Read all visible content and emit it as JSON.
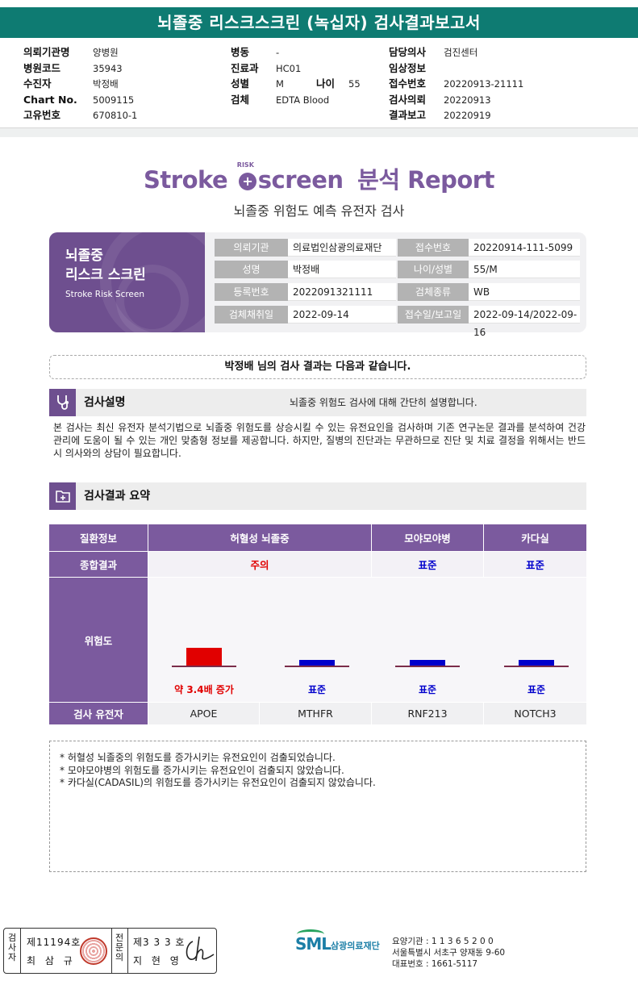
{
  "report_title": "뇌졸중 리스크스크린 (녹십자) 검사결과보고서",
  "header": {
    "col1": [
      {
        "label": "의뢰기관명",
        "value": "양병원"
      },
      {
        "label": "병원코드",
        "value": "35943"
      },
      {
        "label": "수진자",
        "value": "박정배"
      },
      {
        "label": "Chart No.",
        "value": "5009115"
      },
      {
        "label": "고유번호",
        "value": "670810-1"
      }
    ],
    "col2": [
      {
        "label": "병동",
        "value": "-"
      },
      {
        "label": "진료과",
        "value": "HC01"
      },
      {
        "label": "성별",
        "value": "M"
      },
      {
        "label": "검체",
        "value": "EDTA Blood"
      }
    ],
    "age_label": "나이",
    "age_value": "55",
    "col3": [
      {
        "label": "담당의사",
        "value": "검진센터"
      },
      {
        "label": "임상정보",
        "value": ""
      },
      {
        "label": "접수번호",
        "value": "20220913-21111"
      },
      {
        "label": "검사의뢰",
        "value": "20220913"
      },
      {
        "label": "결과보고",
        "value": "20220919"
      }
    ]
  },
  "brand": {
    "stroke": "Stroke",
    "risk_small": "RISK",
    "plus_icon": "+",
    "screen": "screen",
    "report": "분석 Report"
  },
  "subtitle": "뇌졸중 위험도 예측 유전자 검사",
  "info_card": {
    "side_title_line1": "뇌졸중",
    "side_title_line2": "리스크 스크린",
    "side_sub": "Stroke Risk Screen",
    "rows": [
      {
        "k1": "의뢰기관",
        "v1": "의료법인삼광의료재단",
        "k2": "접수번호",
        "v2": "20220914-111-5099"
      },
      {
        "k1": "성명",
        "v1": "박정배",
        "k2": "나이/성별",
        "v2": "55/M"
      },
      {
        "k1": "등록번호",
        "v1": "2022091321111",
        "k2": "검체종류",
        "v2": "WB"
      },
      {
        "k1": "검체채취일",
        "v1": "2022-09-14",
        "k2": "접수일/보고일",
        "v2": "2022-09-14/2022-09-16"
      }
    ]
  },
  "notice": "박정배 님의 검사 결과는 다음과 같습니다.",
  "section_explain": {
    "title": "검사설명",
    "note": "뇌졸중 위험도 검사에 대해 간단히 설명합니다.",
    "body": "본 검사는 최신 유전자 분석기법으로 뇌졸중 위험도를 상승시킬 수 있는 유전요인을 검사하며 기존 연구논문 결과를 분석하여 건강 관리에 도움이 될 수 있는 개인 맞춤형 정보를 제공합니다. 하지만, 질병의 진단과는 무관하므로 진단 및 치료 결정을 위해서는 반드시 의사와의 상담이 필요합니다."
  },
  "section_summary": {
    "title": "검사결과 요약"
  },
  "result_table": {
    "header_label": "질환정보",
    "diseases": [
      "허혈성 뇌졸중",
      "모야모야병",
      "카다실"
    ],
    "overall_label": "종합결과",
    "overall": [
      "주의",
      "표준",
      "표준"
    ],
    "risk_label": "위험도",
    "risk_labels": [
      "약 3.4배 증가",
      "표준",
      "표준",
      "표준"
    ],
    "risk_levels": [
      3.4,
      1,
      1,
      1
    ],
    "gene_label": "검사 유전자",
    "genes": [
      "APOE",
      "MTHFR",
      "RNF213",
      "NOTCH3"
    ]
  },
  "comments": [
    "* 허혈성 뇌졸중의 위험도를 증가시키는 유전요인이 검출되었습니다.",
    "* 모야모야병의 위험도를 증가시키는 유전요인이 검출되지 않았습니다.",
    "* 카다실(CADASIL)의 위험도를 증가시키는 유전요인이 검출되지 않았습니다."
  ],
  "footer": {
    "checker_v": "검사자",
    "checker_no": "제11194호",
    "checker_name": "최 삼 규",
    "reviewer_v": "전문의",
    "reviewer_no": "제3 3 3 호",
    "reviewer_name": "지 현 영",
    "logo": "SML",
    "org": "삼광의료재단",
    "contact1": "요양기관 : 1 1 3 6 5 2 0 0",
    "contact2": "서울특별시 서초구 양재동 9-60",
    "contact3": "대표번호 : 1661-5117"
  },
  "colors": {
    "title_bar": "#0e7b72",
    "purple": "#7b5a9e",
    "warning_red": "#e10000",
    "standard_blue": "#0000cc"
  }
}
